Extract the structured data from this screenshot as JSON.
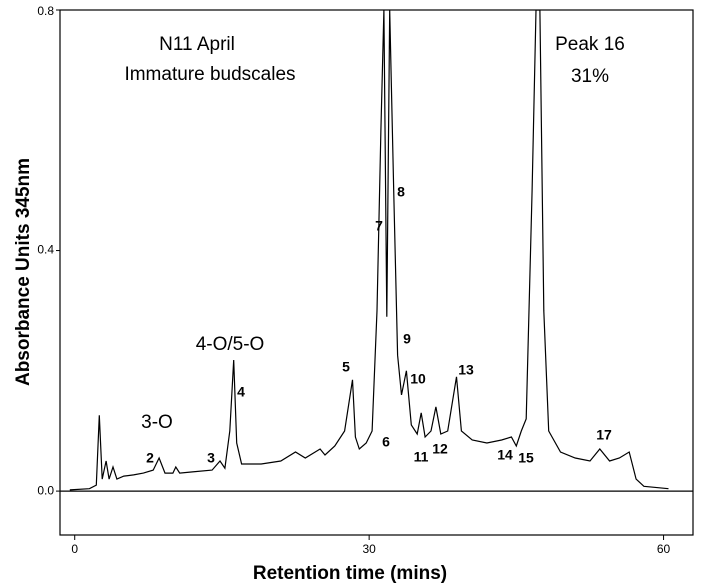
{
  "chart_data": {
    "type": "line",
    "x_label": "Retention time (mins)",
    "y_label": "Absorbance Units 345nm",
    "annotations": [
      "N11 April",
      "Immature budscales",
      "Peak 16",
      "31%",
      "3-O",
      "4-O/5-O",
      "2",
      "3",
      "4",
      "5",
      "6",
      "7",
      "8",
      "9",
      "10",
      "11",
      "12",
      "13",
      "14",
      "15",
      "17"
    ],
    "x": [
      -0.5,
      1.5,
      2.2,
      2.5,
      2.8,
      3.2,
      3.5,
      3.9,
      4.3,
      5,
      6,
      7,
      8,
      8.6,
      9.2,
      10,
      10.3,
      10.7,
      12,
      14,
      14.8,
      15.3,
      15.8,
      16.2,
      16.5,
      17,
      19,
      21,
      22.5,
      23.5,
      25,
      25.5,
      26.5,
      27.5,
      28.3,
      28.6,
      29,
      29.7,
      30.3,
      30.8,
      31.2,
      31.5,
      31.8,
      32.1,
      32.5,
      32.9,
      33.3,
      33.8,
      34.3,
      34.9,
      35.3,
      35.7,
      36.3,
      36.8,
      37.3,
      38,
      38.9,
      39.4,
      40.5,
      42,
      43.5,
      44.5,
      45,
      45.5,
      46,
      46.6,
      47,
      47.4,
      47.8,
      48.3,
      49.5,
      51,
      52.5,
      53.5,
      54.5,
      55.5,
      56.5,
      57.2,
      58,
      60.5
    ],
    "series": [
      {
        "color": "#000000",
        "values": [
          0.002,
          0.004,
          0.01,
          0.126,
          0.02,
          0.05,
          0.02,
          0.04,
          0.02,
          0.025,
          0.027,
          0.03,
          0.035,
          0.055,
          0.03,
          0.03,
          0.04,
          0.03,
          0.032,
          0.035,
          0.05,
          0.038,
          0.1,
          0.218,
          0.08,
          0.045,
          0.045,
          0.05,
          0.065,
          0.055,
          0.07,
          0.06,
          0.075,
          0.1,
          0.185,
          0.09,
          0.07,
          0.08,
          0.1,
          0.3,
          0.6,
          0.8,
          0.29,
          0.8,
          0.5,
          0.226,
          0.16,
          0.2,
          0.11,
          0.095,
          0.13,
          0.09,
          0.1,
          0.14,
          0.095,
          0.1,
          0.19,
          0.1,
          0.085,
          0.08,
          0.085,
          0.09,
          0.075,
          0.1,
          0.12,
          0.5,
          0.8,
          0.8,
          0.3,
          0.1,
          0.065,
          0.055,
          0.05,
          0.07,
          0.05,
          0.055,
          0.065,
          0.02,
          0.008,
          0.004
        ]
      }
    ],
    "xlim": [
      -1.5,
      63
    ],
    "ylim": [
      -0.073,
      0.8
    ],
    "xticks": [
      0,
      30,
      60
    ],
    "yticks": [
      {
        "value": 0,
        "label": "0.0"
      },
      {
        "value": 0.4,
        "label": "0.4"
      },
      {
        "value": 0.8,
        "label": "0.8"
      }
    ]
  }
}
